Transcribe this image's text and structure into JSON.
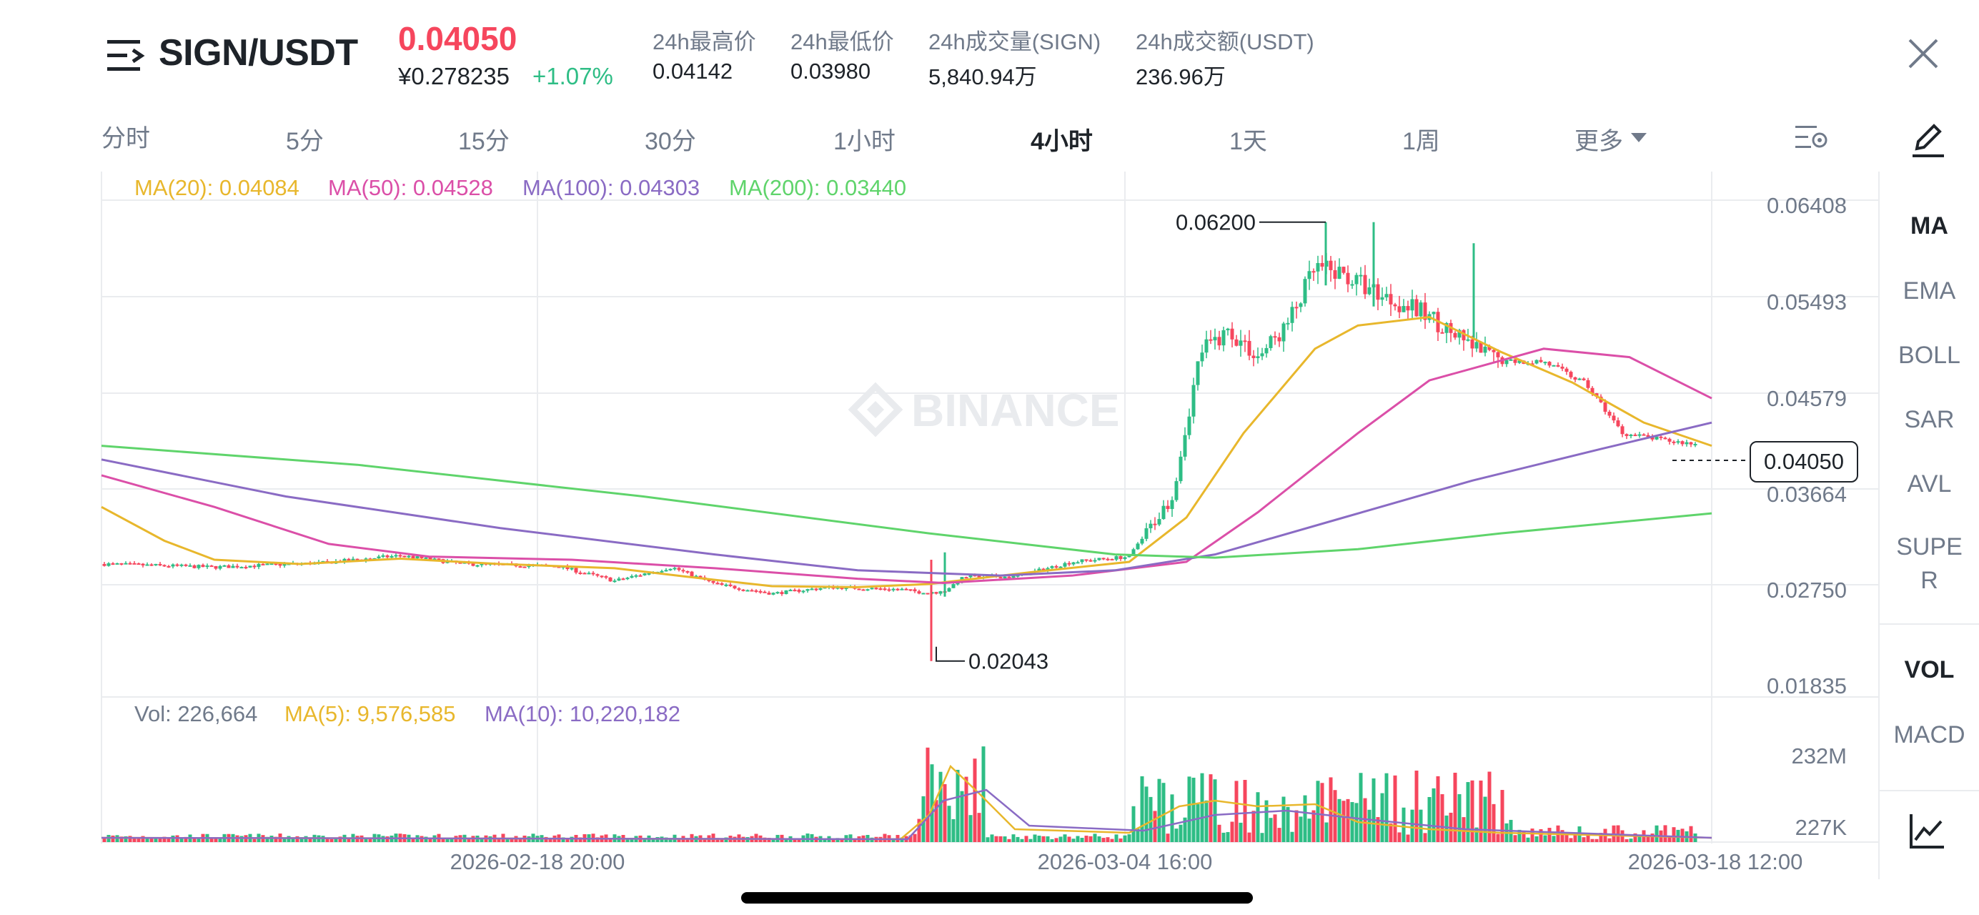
{
  "header": {
    "pair": "SIGN/USDT",
    "last_price": "0.04050",
    "cny_price": "¥0.278235",
    "change_pct": "+1.07%",
    "stats": [
      {
        "label": "24h最高价",
        "value": "0.04142"
      },
      {
        "label": "24h最低价",
        "value": "0.03980"
      },
      {
        "label": "24h成交量(SIGN)",
        "value": "5,840.94万"
      },
      {
        "label": "24h成交额(USDT)",
        "value": "236.96万"
      }
    ]
  },
  "tabs": [
    "分时",
    "5分",
    "15分",
    "30分",
    "1小时",
    "4小时",
    "1天",
    "1周",
    "更多"
  ],
  "active_tab": "4小时",
  "sidebar": {
    "items": [
      "MA",
      "EMA",
      "BOLL",
      "SAR",
      "AVL",
      "SUPE",
      "R",
      "VOL",
      "MACD"
    ]
  },
  "legend": {
    "ma20": "MA(20): 0.04084",
    "ma50": "MA(50): 0.04528",
    "ma100": "MA(100): 0.04303",
    "ma200": "MA(200): 0.03440"
  },
  "vol_legend": {
    "vol": "Vol: 226,664",
    "ma5": "MA(5): 9,576,585",
    "ma10": "MA(10): 10,220,182"
  },
  "watermark": "BINANCE",
  "colors": {
    "up": "#2ebd85",
    "down": "#f6465d",
    "ma20": "#e8b72c",
    "ma50": "#db4fa8",
    "ma100": "#8a6bc4",
    "ma200": "#5fd46b"
  },
  "chart_data": {
    "type": "candlestick",
    "price_axis": [
      "0.06408",
      "0.05493",
      "0.04579",
      "0.03664",
      "0.02750",
      "0.01835"
    ],
    "volume_axis": [
      "232M",
      "227K"
    ],
    "time_axis": [
      "2026-02-18 20:00",
      "2026-03-04 16:00",
      "2026-03-18 12:00"
    ],
    "current_price": "0.04050",
    "high_label": "0.06200",
    "low_label": "0.02043",
    "ylim": [
      0.01835,
      0.06408
    ]
  }
}
